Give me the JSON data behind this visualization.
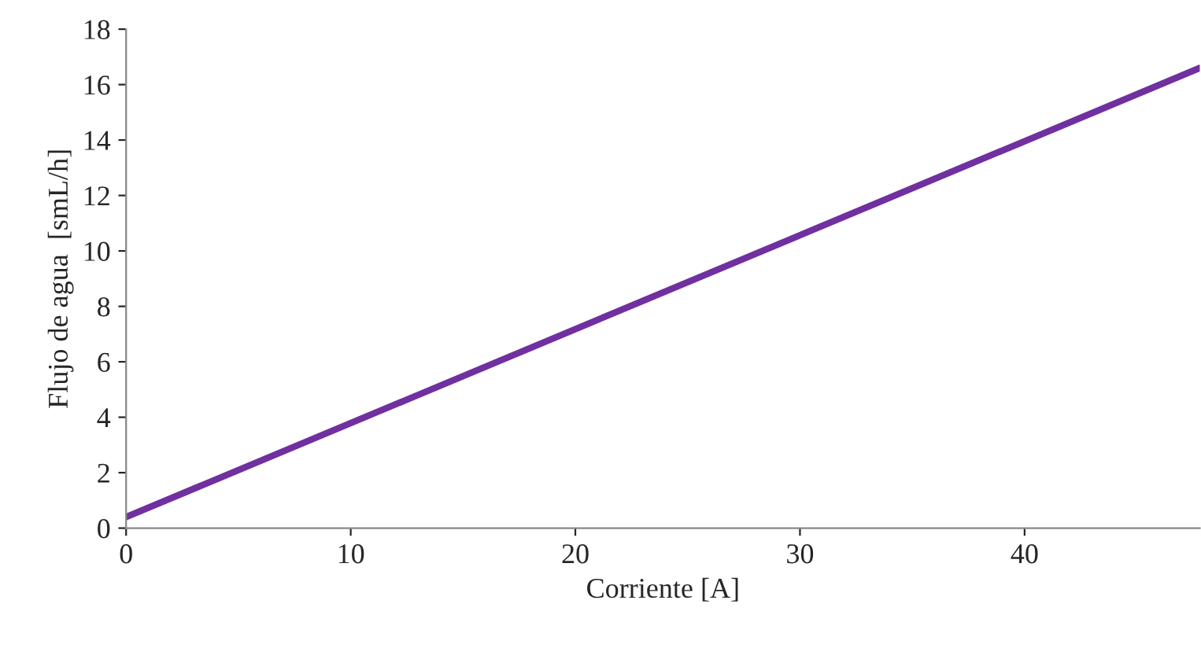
{
  "chart_data": {
    "type": "line",
    "xlabel": "Corriente [A]",
    "ylabel": "Flujo de agua  [smL/h]",
    "x": [
      0,
      47.8
    ],
    "series": [
      {
        "color": "#7030a0",
        "values": [
          0.4,
          16.6
        ]
      }
    ],
    "xlim": [
      0,
      47.8
    ],
    "xticks": [
      0,
      10,
      20,
      30,
      40
    ],
    "ylim": [
      0,
      18
    ],
    "yticks": [
      0,
      2,
      4,
      6,
      8,
      10,
      12,
      14,
      16,
      18
    ],
    "grid": false,
    "legend": false,
    "marker": "none",
    "line_style": "solid"
  }
}
